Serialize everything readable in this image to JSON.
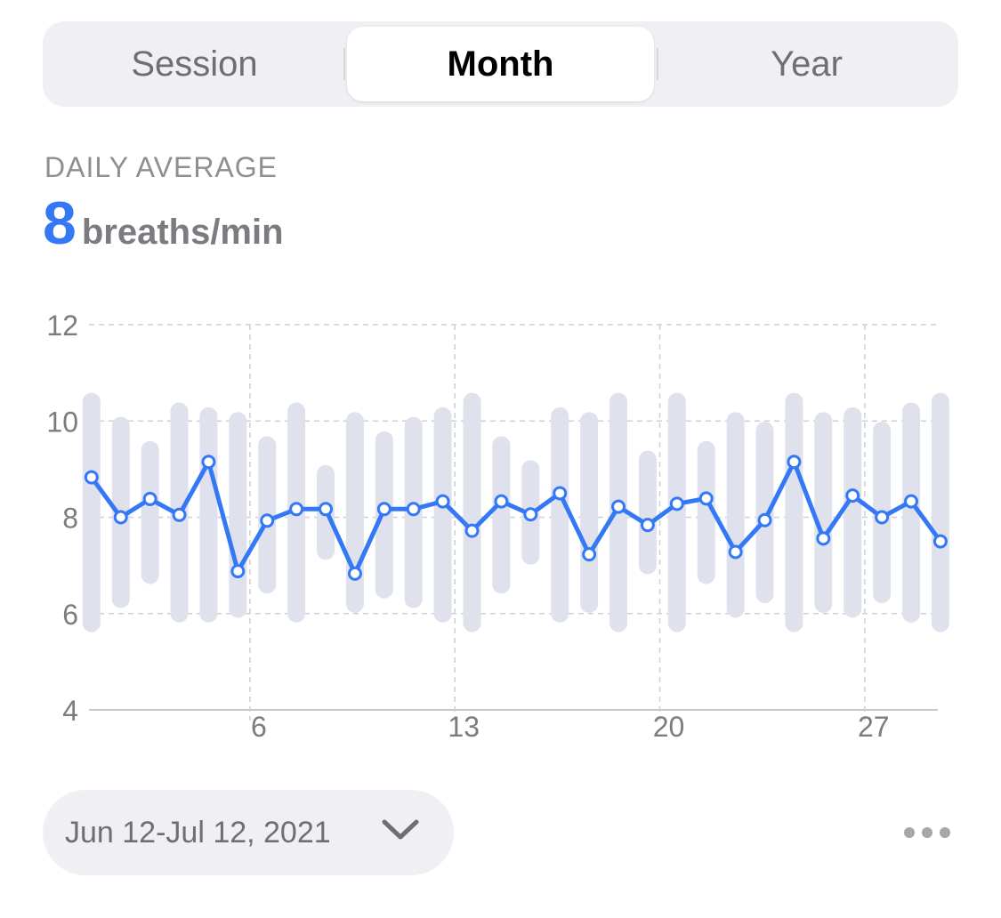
{
  "segmented": {
    "items": [
      "Session",
      "Month",
      "Year"
    ],
    "selected": "Month"
  },
  "summary": {
    "label": "DAILY AVERAGE",
    "value": "8",
    "unit": "breaths/min"
  },
  "colors": {
    "accent": "#3478f6",
    "range_bar": "#dfe2ec",
    "grid": "#cfcfd4",
    "axis_text": "#7b7b80"
  },
  "date_range": {
    "label": "Jun 12-Jul 12, 2021",
    "icon": "chevron-down-icon"
  },
  "more_icon": "ellipsis-icon",
  "chart_data": {
    "type": "line",
    "title": "",
    "xlabel": "",
    "ylabel": "",
    "ylim": [
      4,
      12
    ],
    "y_ticks": [
      12,
      10,
      8,
      6,
      4
    ],
    "x_ticks": [
      6,
      13,
      20,
      27
    ],
    "x": [
      0.8,
      1.8,
      2.8,
      3.8,
      4.8,
      5.8,
      6.8,
      7.8,
      8.8,
      9.8,
      10.8,
      11.8,
      12.8,
      13.8,
      14.8,
      15.8,
      16.8,
      17.8,
      18.8,
      19.8,
      20.8,
      21.8,
      22.8,
      23.8,
      24.8,
      25.8,
      26.8,
      27.8,
      28.8,
      29.8
    ],
    "grid": true,
    "series": [
      {
        "type": "range",
        "values_low": [
          5.8,
          6.3,
          6.8,
          6.0,
          6.0,
          6.1,
          6.6,
          6.0,
          7.3,
          6.2,
          6.5,
          6.3,
          6.0,
          5.8,
          6.6,
          7.2,
          6.0,
          6.2,
          5.8,
          7.0,
          5.8,
          6.8,
          6.1,
          6.4,
          5.8,
          6.2,
          6.1,
          6.4,
          6.0,
          5.8
        ],
        "values_high": [
          10.4,
          9.9,
          9.4,
          10.2,
          10.1,
          10.0,
          9.5,
          10.2,
          8.9,
          10.0,
          9.6,
          9.9,
          10.1,
          10.4,
          9.5,
          9.0,
          10.1,
          10.0,
          10.4,
          9.2,
          10.4,
          9.4,
          10.0,
          9.8,
          10.4,
          10.0,
          10.1,
          9.8,
          10.2,
          10.4
        ]
      },
      {
        "type": "line",
        "values": [
          8.83,
          8.0,
          8.38,
          8.05,
          9.15,
          6.88,
          7.93,
          8.17,
          8.17,
          6.83,
          8.17,
          8.17,
          8.33,
          7.72,
          8.33,
          8.06,
          8.5,
          7.23,
          8.22,
          7.84,
          8.28,
          8.39,
          7.28,
          7.94,
          9.15,
          7.56,
          8.45,
          8.0,
          8.33,
          7.5
        ]
      }
    ]
  }
}
